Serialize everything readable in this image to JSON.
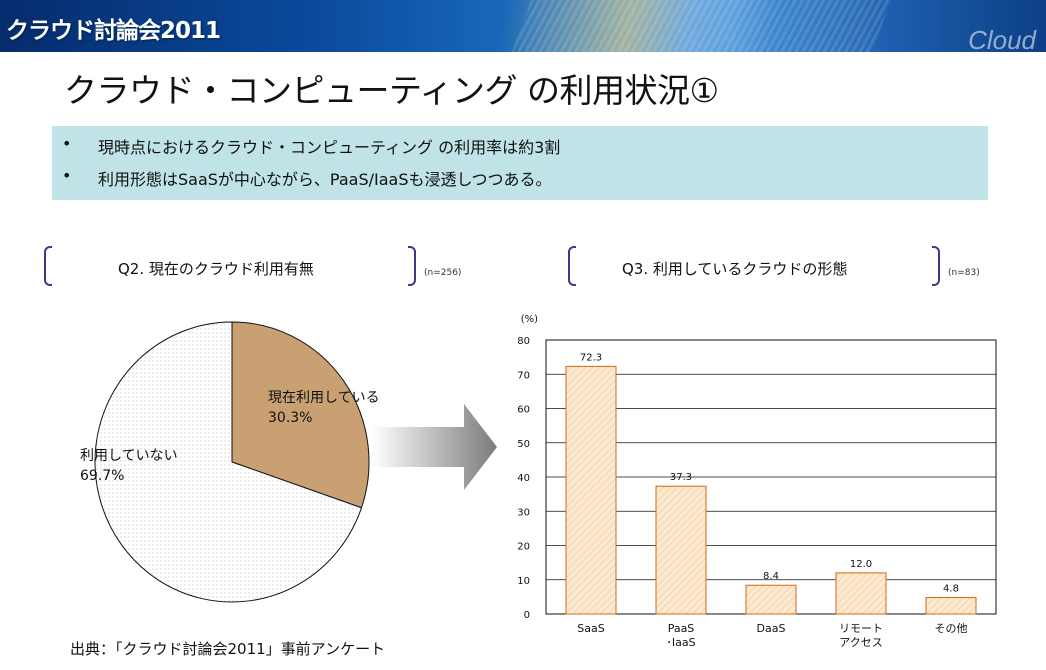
{
  "header": {
    "banner_title": "クラウド討論会2011",
    "banner_brand": "Cloud"
  },
  "slide": {
    "title": "クラウド・コンピューティング の利用状況①",
    "bullets": [
      {
        "marker": "•",
        "text": "現時点におけるクラウド・コンピューティング の利用率は約3割"
      },
      {
        "marker": "•",
        "text": "利用形態はSaaSが中心ながら、PaaS/IaaSも浸透しつつある。"
      }
    ],
    "source": "出典：「クラウド討論会2011」事前アンケート"
  },
  "colors": {
    "summary_bg": "#bfe3e6",
    "pie_used": "#c9a072",
    "pie_unused": "#ffffff",
    "bar_fill": "#fbe5c8",
    "bar_stroke": "#d46a0e",
    "bracket": "#3a3a8a"
  },
  "charts": {
    "q2": {
      "question": "Q2. 現在のクラウド利用有無",
      "n": "(n=256)"
    },
    "q3": {
      "question": "Q3. 利用しているクラウドの形態",
      "n": "(n=83)"
    }
  },
  "chart_data": [
    {
      "type": "pie",
      "slices": [
        {
          "label": "現在利用している",
          "value": 30.3,
          "display": "30.3%"
        },
        {
          "label": "利用していない",
          "value": 69.7,
          "display": "69.7%"
        }
      ]
    },
    {
      "type": "bar",
      "unit_label": "(%)",
      "categories": [
        [
          "SaaS"
        ],
        [
          "PaaS",
          "･IaaS"
        ],
        [
          "DaaS"
        ],
        [
          "リモート",
          "アクセス"
        ],
        [
          "その他"
        ]
      ],
      "values": [
        72.3,
        37.3,
        8.4,
        12.0,
        4.8
      ],
      "value_labels": [
        "72.3",
        "37.3",
        "8.4",
        "12.0",
        "4.8"
      ],
      "ylim": [
        0,
        80
      ],
      "yticks": [
        0,
        10,
        20,
        30,
        40,
        50,
        60,
        70,
        80
      ],
      "grid": true
    }
  ]
}
